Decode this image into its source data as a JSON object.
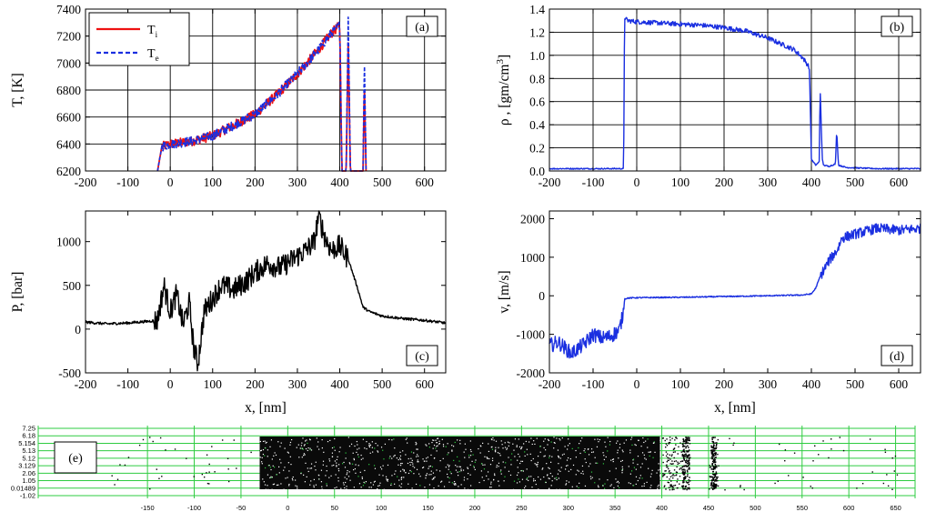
{
  "chart_data": [
    {
      "panel": "(a)",
      "type": "line",
      "ylabel": "T, [K]",
      "xlabel": "",
      "xlim": [
        -200,
        650
      ],
      "ylim": [
        6200,
        7400
      ],
      "xticks": [
        "-200",
        "-100",
        "0",
        "100",
        "200",
        "300",
        "400",
        "500",
        "600"
      ],
      "yticks": [
        "6200",
        "6400",
        "6600",
        "6800",
        "7000",
        "7200",
        "7400"
      ],
      "grid": true,
      "legend": {
        "placement": "top-left",
        "entries": [
          {
            "label": "T",
            "sub": "i",
            "color": "#ee1111",
            "style": "solid"
          },
          {
            "label": "T",
            "sub": "e",
            "color": "#1a2fe0",
            "style": "dashed"
          }
        ]
      },
      "series": [
        {
          "name": "Ti",
          "color": "#ee1111",
          "x": [
            -30,
            -20,
            0,
            50,
            100,
            150,
            200,
            250,
            300,
            350,
            380,
            400,
            405,
            415,
            420,
            425,
            430,
            455,
            458,
            462
          ],
          "values": [
            6200,
            6380,
            6400,
            6420,
            6460,
            6540,
            6620,
            6760,
            6920,
            7100,
            7220,
            7280,
            6200,
            6200,
            7150,
            6200,
            6200,
            6200,
            6850,
            6200
          ]
        },
        {
          "name": "Te",
          "color": "#1a2fe0",
          "x": [
            -30,
            -20,
            0,
            50,
            100,
            150,
            200,
            250,
            300,
            350,
            380,
            400,
            405,
            415,
            420,
            425,
            430,
            455,
            458,
            462
          ],
          "values": [
            6200,
            6380,
            6400,
            6420,
            6460,
            6540,
            6620,
            6760,
            6920,
            7100,
            7220,
            7280,
            6200,
            6200,
            7340,
            6200,
            6200,
            6200,
            7060,
            6200
          ]
        }
      ]
    },
    {
      "panel": "(b)",
      "type": "line",
      "ylabel": "ρ , [gm/cm",
      "ylabel_sup": "3",
      "ylabel_end": "]",
      "xlabel": "",
      "xlim": [
        -200,
        650
      ],
      "ylim": [
        0,
        1.4
      ],
      "xticks": [
        "-200",
        "-100",
        "0",
        "100",
        "200",
        "300",
        "400",
        "500",
        "600"
      ],
      "yticks": [
        "0.0",
        "0.2",
        "0.4",
        "0.6",
        "0.8",
        "1.0",
        "1.2",
        "1.4"
      ],
      "grid": true,
      "series": [
        {
          "name": "rho",
          "color": "#1a2fe0",
          "x": [
            -200,
            -30,
            -28,
            -20,
            0,
            50,
            100,
            150,
            200,
            250,
            300,
            330,
            360,
            380,
            395,
            398,
            400,
            410,
            418,
            420,
            425,
            428,
            440,
            455,
            458,
            462,
            480,
            550,
            650
          ],
          "values": [
            0.02,
            0.02,
            1.32,
            1.3,
            1.29,
            1.28,
            1.27,
            1.26,
            1.24,
            1.21,
            1.15,
            1.1,
            1.05,
            0.98,
            0.9,
            0.5,
            0.1,
            0.05,
            0.08,
            0.72,
            0.1,
            0.05,
            0.04,
            0.06,
            0.35,
            0.05,
            0.03,
            0.02,
            0.02
          ]
        }
      ]
    },
    {
      "panel": "(c)",
      "type": "line",
      "ylabel": "P, [bar]",
      "xlabel": "x, [nm]",
      "xlim": [
        -200,
        650
      ],
      "ylim": [
        -500,
        1350
      ],
      "xticks": [
        "-200",
        "-100",
        "0",
        "100",
        "200",
        "300",
        "400",
        "500",
        "600"
      ],
      "yticks": [
        "-500",
        "0",
        "500",
        "1000"
      ],
      "grid": false,
      "series": [
        {
          "name": "P",
          "color": "#000000",
          "x": [
            -200,
            -150,
            -100,
            -50,
            -30,
            -15,
            0,
            15,
            30,
            45,
            55,
            65,
            80,
            100,
            120,
            150,
            180,
            200,
            230,
            260,
            290,
            320,
            340,
            350,
            365,
            380,
            400,
            420,
            440,
            455,
            470,
            500,
            550,
            600,
            650
          ],
          "values": [
            80,
            60,
            70,
            90,
            100,
            500,
            200,
            400,
            50,
            300,
            -200,
            -400,
            200,
            350,
            500,
            450,
            550,
            650,
            750,
            700,
            800,
            900,
            1000,
            1300,
            1050,
            900,
            950,
            800,
            500,
            250,
            200,
            150,
            120,
            100,
            70
          ]
        }
      ]
    },
    {
      "panel": "(d)",
      "type": "line",
      "ylabel": "v, [m/s]",
      "xlabel": "x, [nm]",
      "xlim": [
        -200,
        650
      ],
      "ylim": [
        -2000,
        2200
      ],
      "xticks": [
        "-200",
        "-100",
        "0",
        "100",
        "200",
        "300",
        "400",
        "500",
        "600"
      ],
      "yticks": [
        "-2000",
        "-1000",
        "0",
        "1000",
        "2000"
      ],
      "grid": false,
      "series": [
        {
          "name": "v",
          "color": "#1a2fe0",
          "x": [
            -200,
            -180,
            -150,
            -120,
            -100,
            -80,
            -60,
            -40,
            -30,
            -28,
            -20,
            0,
            100,
            200,
            300,
            380,
            400,
            410,
            420,
            440,
            460,
            470,
            500,
            550,
            600,
            650
          ],
          "values": [
            -1300,
            -1200,
            -1500,
            -1250,
            -1000,
            -1100,
            -1050,
            -900,
            -400,
            -80,
            -60,
            -50,
            -40,
            -20,
            0,
            20,
            50,
            200,
            500,
            900,
            1200,
            1500,
            1600,
            1750,
            1700,
            1750
          ]
        }
      ]
    }
  ],
  "panel_e": {
    "label": "(e)",
    "yticks": [
      "7.25",
      "6.18",
      "5.154",
      "5.13",
      "5.12",
      "3.129",
      "2.06",
      "1.05",
      "0.01489",
      "-1.02"
    ],
    "xticks": [
      "-150",
      "-100",
      "-50",
      "0",
      "50",
      "100",
      "150",
      "200",
      "250",
      "300",
      "350",
      "400",
      "450",
      "500",
      "550",
      "600",
      "650"
    ],
    "xlim": [
      -190,
      665
    ],
    "dense_region": [
      -30,
      398
    ]
  }
}
